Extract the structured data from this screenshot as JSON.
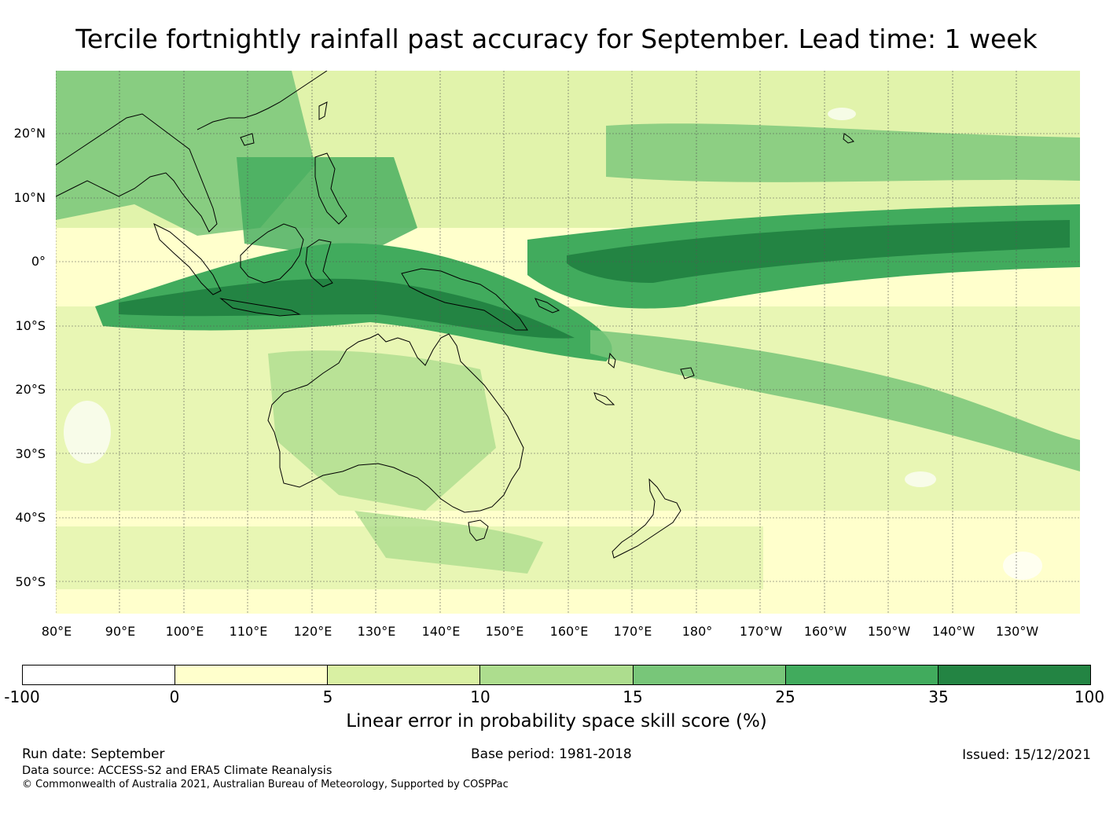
{
  "title": "Tercile fortnightly rainfall past accuracy for September. Lead time: 1 week",
  "map": {
    "lat_labels": [
      "20°N",
      "10°N",
      "0°",
      "10°S",
      "20°S",
      "30°S",
      "40°S",
      "50°S"
    ],
    "lon_labels": [
      "80°E",
      "90°E",
      "100°E",
      "110°E",
      "120°E",
      "130°E",
      "140°E",
      "150°E",
      "160°E",
      "170°E",
      "180°",
      "170°W",
      "160°W",
      "150°W",
      "140°W",
      "130°W"
    ]
  },
  "legend": {
    "ticks": [
      "-100",
      "0",
      "5",
      "10",
      "15",
      "25",
      "35",
      "100"
    ],
    "colors": [
      "#ffffff",
      "#ffffcc",
      "#d9f0a3",
      "#addd8e",
      "#78c679",
      "#41ab5d",
      "#238443"
    ],
    "label": "Linear error in probability space skill score (%)"
  },
  "footer": {
    "run_date": "Run date: September",
    "base_period": "Base period: 1981-2018",
    "issued": "Issued: 15/12/2021",
    "data_source": "Data source: ACCESS-S2 and ERA5 Climate Reanalysis",
    "copyright": "© Commonwealth of Australia 2021, Australian Bureau of Meteorology, Supported by COSPPac"
  }
}
